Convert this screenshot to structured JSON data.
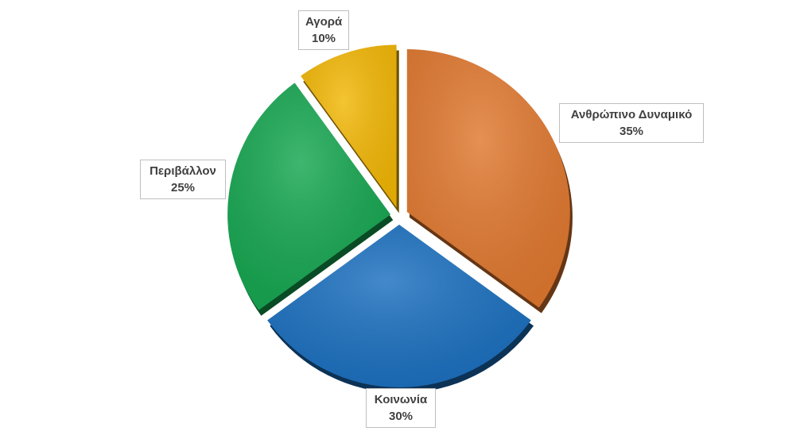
{
  "chart_data": {
    "type": "pie",
    "title": "",
    "legend": "none",
    "slices": [
      {
        "label": "Ανθρώπινο Δυναμικό",
        "value": 35,
        "value_label": "35%",
        "color": "#e0782f"
      },
      {
        "label": "Κοινωνία",
        "value": 30,
        "value_label": "30%",
        "color": "#1a6fbf"
      },
      {
        "label": "Περιβάλλον",
        "value": 25,
        "value_label": "25%",
        "color": "#15a650"
      },
      {
        "label": "Αγορά",
        "value": 10,
        "value_label": "10%",
        "color": "#f2b705"
      }
    ]
  }
}
